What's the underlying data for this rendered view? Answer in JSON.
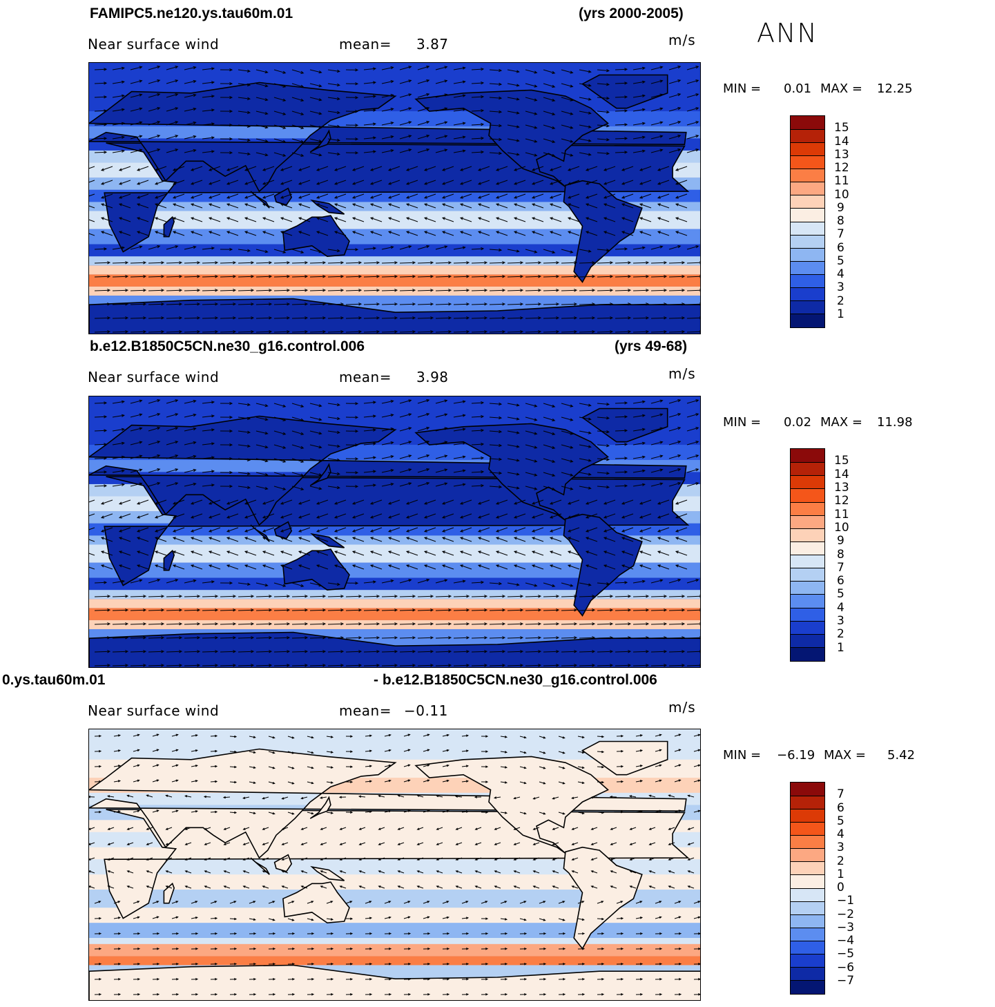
{
  "season": "ANN",
  "panels": [
    {
      "id": "top",
      "case": "FAMIPC5.ne120.ys.tau60m.01",
      "years": "(yrs 2000-2005)",
      "variable": "Near surface wind",
      "mean_label": "mean=",
      "mean_value": "3.87",
      "units": "m/s",
      "min_label": "MIN =",
      "min_value": "0.01",
      "max_label": "MAX =",
      "max_value": "12.25",
      "colorbar_labels": [
        "15",
        "14",
        "13",
        "12",
        "11",
        "10",
        "9",
        "8",
        "7",
        "6",
        "5",
        "4",
        "3",
        "2",
        "1"
      ],
      "colorbar_colors": [
        "#8b0a0a",
        "#b52208",
        "#dc3a06",
        "#f4561a",
        "#fb7e45",
        "#fca882",
        "#fdd2b8",
        "#fbeee3",
        "#d7e6f6",
        "#b4d0f3",
        "#8eb6f2",
        "#5c8df0",
        "#2f5fe6",
        "#1a3ecd",
        "#0e2aa6",
        "#041673"
      ]
    },
    {
      "id": "mid",
      "case": "b.e12.B1850C5CN.ne30_g16.control.006",
      "years": "(yrs 49-68)",
      "variable": "Near surface wind",
      "mean_label": "mean=",
      "mean_value": "3.98",
      "units": "m/s",
      "min_label": "MIN =",
      "min_value": "0.02",
      "max_label": "MAX =",
      "max_value": "11.98",
      "colorbar_labels": [
        "15",
        "14",
        "13",
        "12",
        "11",
        "10",
        "9",
        "8",
        "7",
        "6",
        "5",
        "4",
        "3",
        "2",
        "1"
      ],
      "colorbar_colors": [
        "#8b0a0a",
        "#b52208",
        "#dc3a06",
        "#f4561a",
        "#fb7e45",
        "#fca882",
        "#fdd2b8",
        "#fbeee3",
        "#d7e6f6",
        "#b4d0f3",
        "#8eb6f2",
        "#5c8df0",
        "#2f5fe6",
        "#1a3ecd",
        "#0e2aa6",
        "#041673"
      ]
    },
    {
      "id": "diff",
      "case": "0.ys.tau60m.01",
      "years": "- b.e12.B1850C5CN.ne30_g16.control.006",
      "variable": "Near surface wind",
      "mean_label": "mean=",
      "mean_value": "−0.11",
      "units": "m/s",
      "min_label": "MIN =",
      "min_value": "−6.19",
      "max_label": "MAX =",
      "max_value": "5.42",
      "colorbar_labels": [
        "7",
        "6",
        "5",
        "4",
        "3",
        "2",
        "1",
        "0",
        "−1",
        "−2",
        "−3",
        "−4",
        "−5",
        "−6",
        "−7"
      ],
      "colorbar_colors": [
        "#8b0a0a",
        "#b52208",
        "#dc3a06",
        "#f4561a",
        "#fb7e45",
        "#fca882",
        "#fdd2b8",
        "#fbeee3",
        "#d7e6f6",
        "#b4d0f3",
        "#8eb6f2",
        "#5c8df0",
        "#2f5fe6",
        "#1a3ecd",
        "#0e2aa6",
        "#041673"
      ]
    }
  ]
}
